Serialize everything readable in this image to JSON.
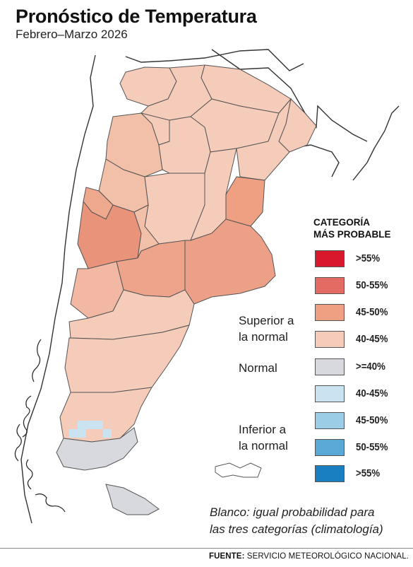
{
  "header": {
    "title": "Pronóstico de Temperatura",
    "subtitle": "Febrero–Marzo 2026"
  },
  "legend": {
    "title_line1": "CATEGORÍA",
    "title_line2": "MÁS PROBABLE",
    "groups": {
      "superior_line1": "Superior a",
      "superior_line2": "la normal",
      "normal": "Normal",
      "inferior_line1": "Inferior a",
      "inferior_line2": "la normal"
    },
    "items": [
      {
        "label": ">55%",
        "color": "#d7192b"
      },
      {
        "label": "50-55%",
        "color": "#e36b64"
      },
      {
        "label": "45-50%",
        "color": "#ef9f82"
      },
      {
        "label": "40-45%",
        "color": "#f5cbb9"
      },
      {
        "label": ">=40%",
        "color": "#d8d9de"
      },
      {
        "label": "40-45%",
        "color": "#c9e4f0"
      },
      {
        "label": "45-50%",
        "color": "#9ccde6"
      },
      {
        "label": "50-55%",
        "color": "#5aa8d6"
      },
      {
        "label": ">55%",
        "color": "#1a7fc1"
      }
    ]
  },
  "note": {
    "line1": "Blanco: igual probabilidad para",
    "line2": "las tres categorías (climatología)"
  },
  "source": {
    "label": "FUENTE:",
    "text": "SERVICIO METEOROLÓGICO NACIONAL."
  }
}
